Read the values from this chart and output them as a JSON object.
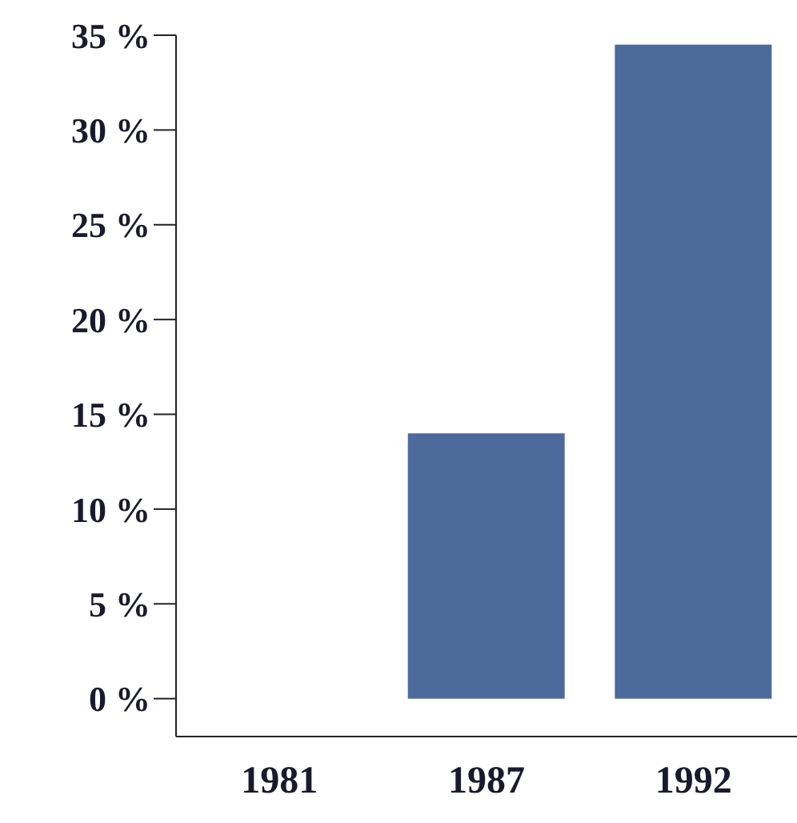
{
  "chart_data": {
    "type": "bar",
    "categories": [
      "1981",
      "1987",
      "1992"
    ],
    "values": [
      null,
      14,
      34.5
    ],
    "color": "#4d6a9c",
    "ylim": [
      -2,
      35
    ],
    "yticks": [
      {
        "value": 0,
        "label": "0 %"
      },
      {
        "value": 5,
        "label": "5 %"
      },
      {
        "value": 10,
        "label": "10 %"
      },
      {
        "value": 15,
        "label": "15 %"
      },
      {
        "value": 20,
        "label": "20 %"
      },
      {
        "value": 25,
        "label": "25 %"
      },
      {
        "value": 30,
        "label": "30 %"
      },
      {
        "value": 35,
        "label": "35 %"
      }
    ]
  }
}
